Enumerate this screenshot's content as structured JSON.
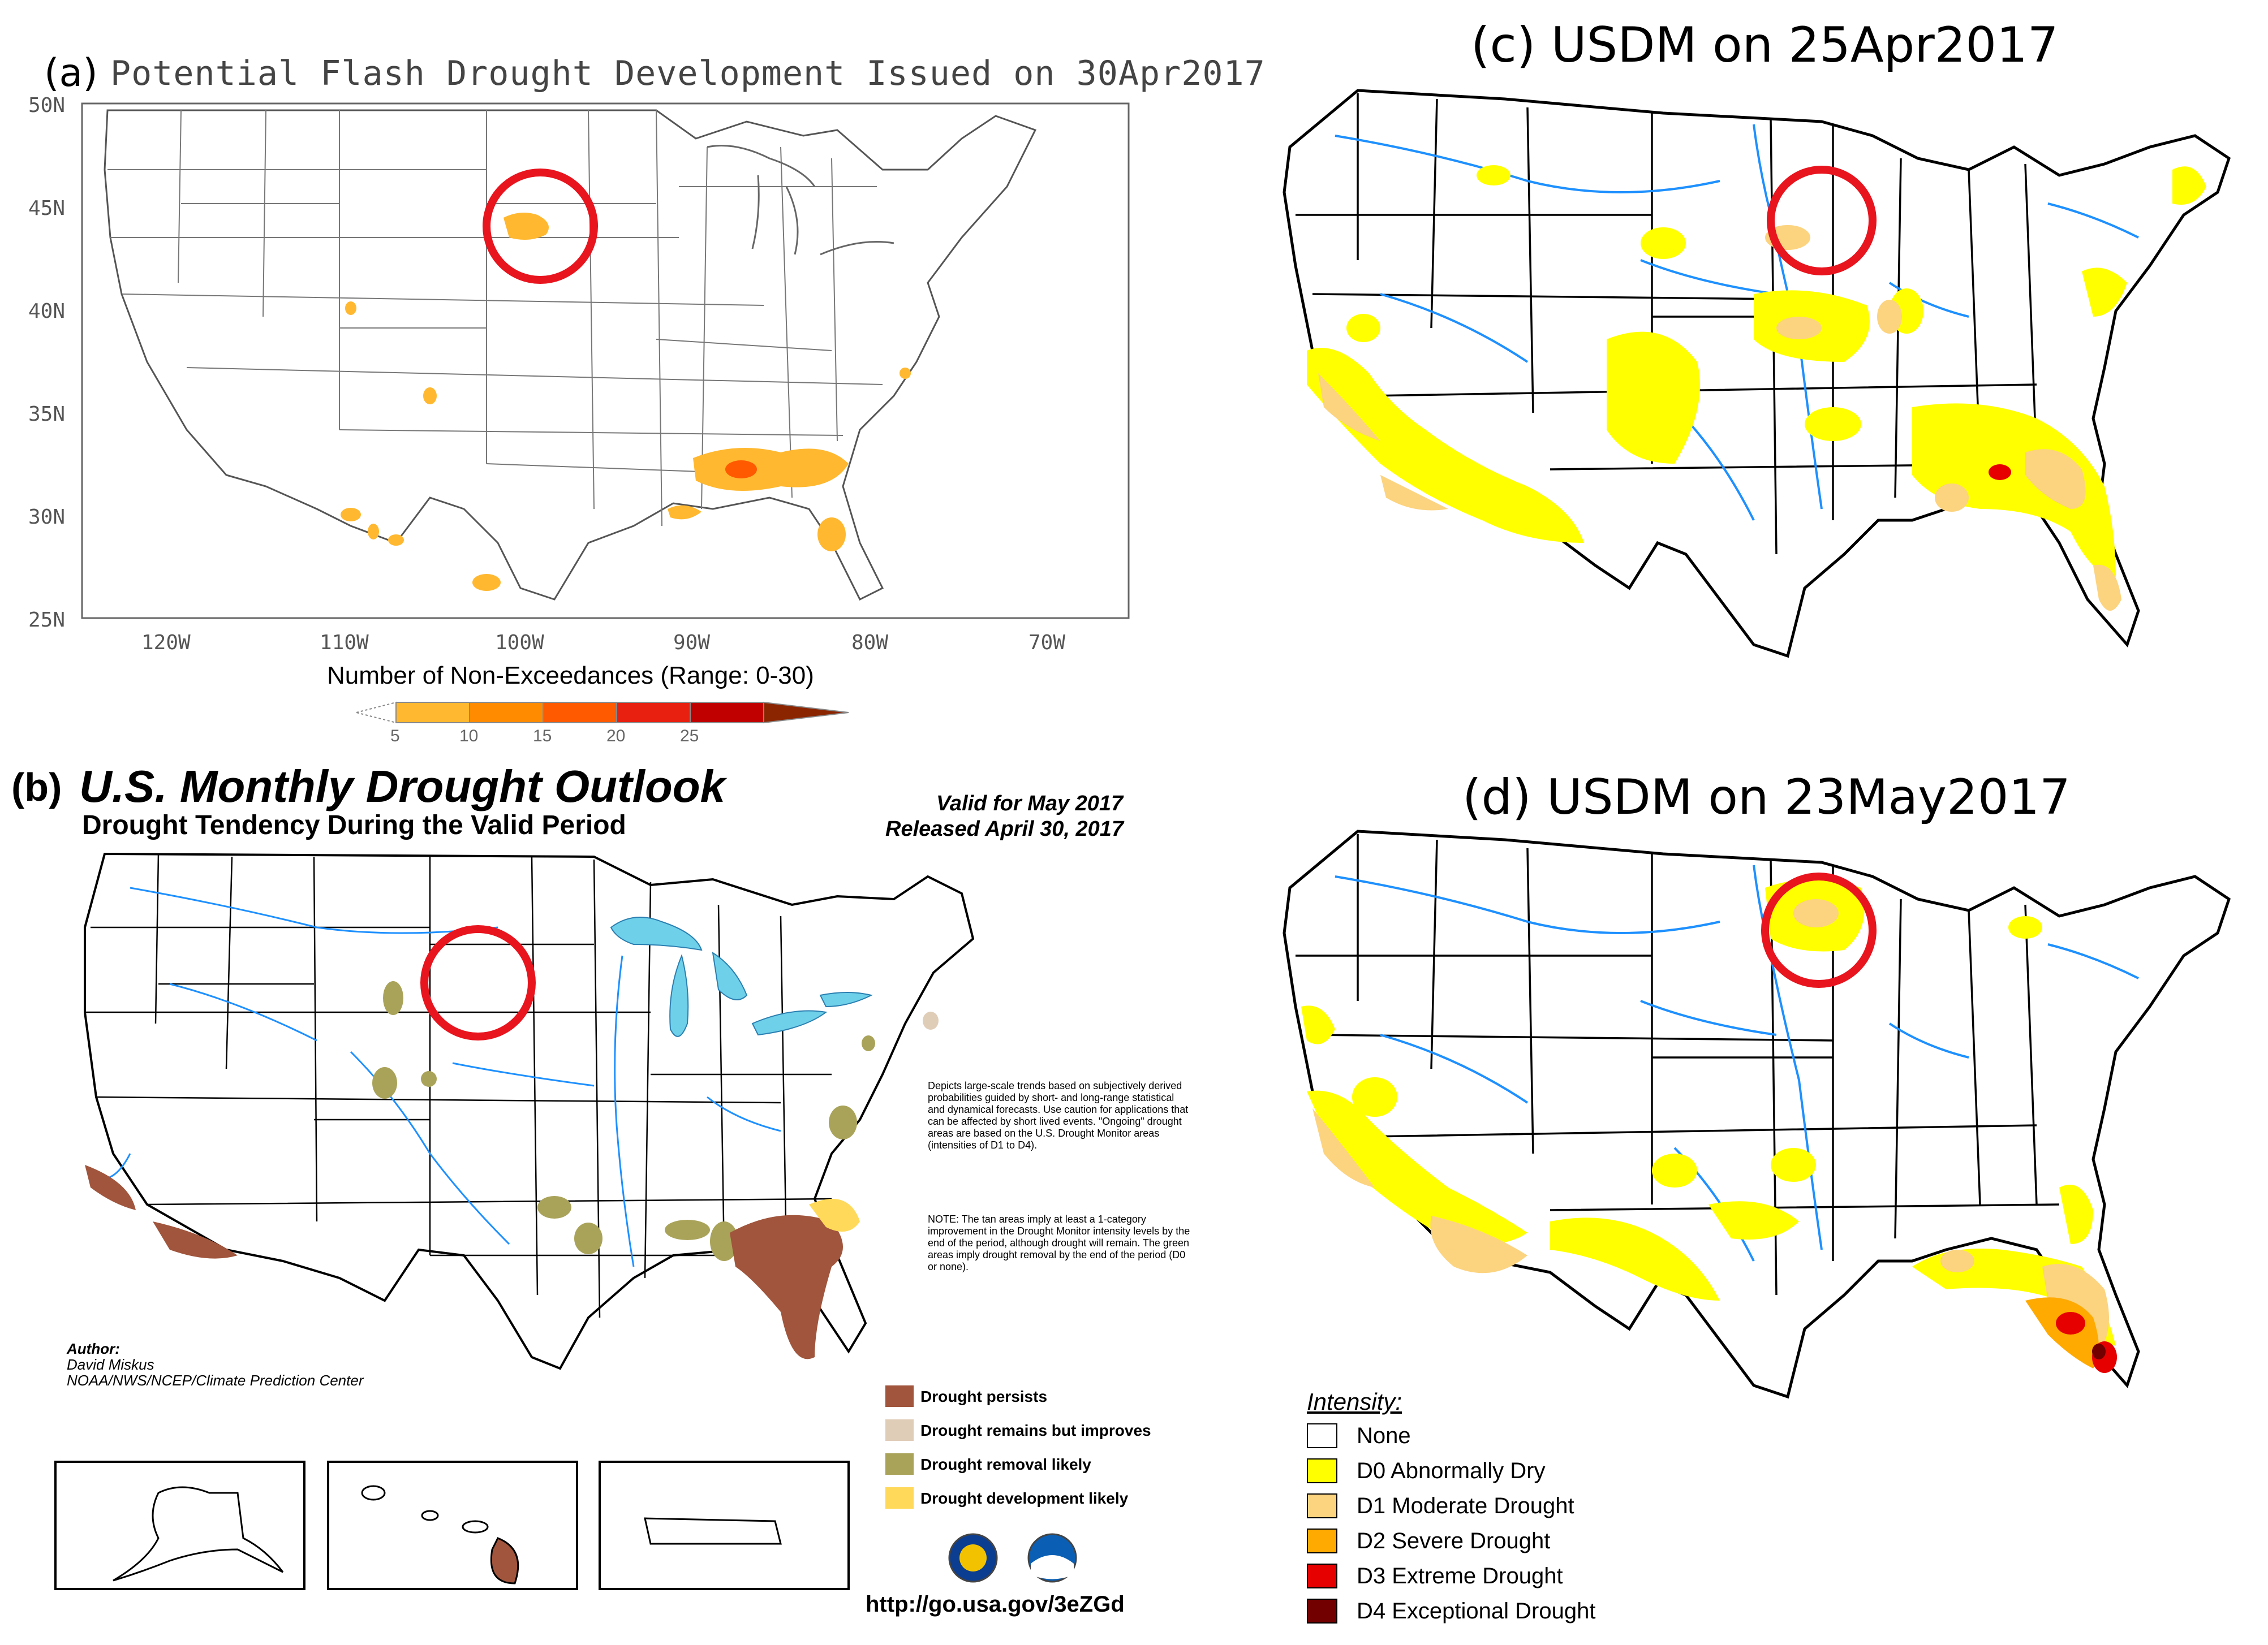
{
  "panel_a": {
    "label": "(a)",
    "title": "Potential Flash Drought Development Issued on 30Apr2017",
    "lat_ticks": [
      "50N",
      "45N",
      "40N",
      "35N",
      "30N",
      "25N"
    ],
    "lon_ticks": [
      "120W",
      "110W",
      "100W",
      "90W",
      "80W",
      "70W"
    ],
    "colorbar_title": "Number of Non-Exceedances (Range: 0-30)",
    "colorbar_ticks": [
      "5",
      "10",
      "15",
      "20",
      "25"
    ],
    "colorbar_colors": [
      "#ffffff",
      "#ffb830",
      "#ff8c00",
      "#ff5a00",
      "#e82010",
      "#c00000",
      "#8b2500"
    ]
  },
  "panel_b": {
    "label": "(b)",
    "title": "U.S. Monthly Drought Outlook",
    "subtitle": "Drought Tendency During the Valid Period",
    "valid": "Valid for May 2017",
    "released": "Released April 30, 2017",
    "description": "Depicts large-scale trends based on subjectively derived probabilities guided by short- and long-range statistical and dynamical forecasts. Use caution for applications that can be affected by short lived events. \"Ongoing\" drought areas are based on the U.S. Drought Monitor areas (intensities of D1 to D4).",
    "note": "NOTE: The tan areas imply at least a 1-category improvement in the Drought Monitor intensity levels by the end of the period, although drought will remain. The green areas imply drought removal by the end of the period (D0 or none).",
    "author_label": "Author:",
    "author_name": "David Miskus",
    "author_org": "NOAA/NWS/NCEP/Climate Prediction Center",
    "url": "http://go.usa.gov/3eZGd",
    "legend": [
      {
        "label": "Drought persists",
        "color": "#a0553c"
      },
      {
        "label": "Drought remains but improves",
        "color": "#e0cdb8"
      },
      {
        "label": "Drought removal likely",
        "color": "#a9a35a"
      },
      {
        "label": "Drought development likely",
        "color": "#ffd95a"
      }
    ]
  },
  "panel_c": {
    "title": "(c) USDM on 25Apr2017"
  },
  "panel_d": {
    "title": "(d) USDM on 23May2017"
  },
  "intensity_legend": {
    "title": "Intensity:",
    "items": [
      {
        "label": "None",
        "color": "#ffffff"
      },
      {
        "label": "D0 Abnormally Dry",
        "color": "#ffff00"
      },
      {
        "label": "D1 Moderate Drought",
        "color": "#fcd37f"
      },
      {
        "label": "D2 Severe Drought",
        "color": "#ffaa00"
      },
      {
        "label": "D3 Extreme Drought",
        "color": "#e60000"
      },
      {
        "label": "D4 Exceptional Drought",
        "color": "#730000"
      }
    ]
  },
  "colors": {
    "river": "#1e90ff",
    "highlight_circle": "#e8141e",
    "lake": "#6fd0ea"
  }
}
